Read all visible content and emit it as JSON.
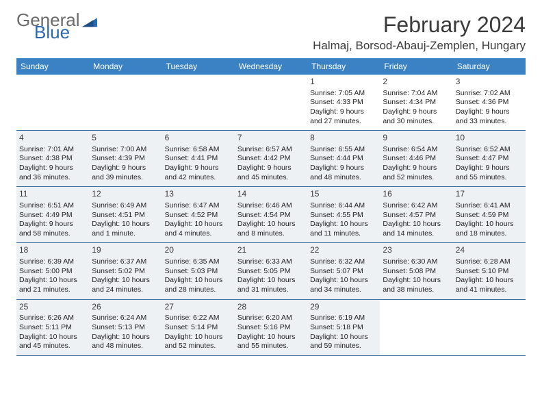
{
  "logo": {
    "line1": "General",
    "line2": "Blue"
  },
  "title": "February 2024",
  "location": "Halmaj, Borsod-Abauj-Zemplen, Hungary",
  "colors": {
    "header_bg": "#3b82c4",
    "header_text": "#ffffff",
    "shade_bg": "#eef1f4",
    "rule": "#3b6fa0",
    "title_text": "#3a3a3a",
    "logo_gray": "#6a6a6a",
    "logo_blue": "#2a68b0"
  },
  "days": [
    "Sunday",
    "Monday",
    "Tuesday",
    "Wednesday",
    "Thursday",
    "Friday",
    "Saturday"
  ],
  "weeks": [
    {
      "shade": false,
      "cells": [
        {
          "n": "",
          "lines": []
        },
        {
          "n": "",
          "lines": []
        },
        {
          "n": "",
          "lines": []
        },
        {
          "n": "",
          "lines": []
        },
        {
          "n": "1",
          "lines": [
            "Sunrise: 7:05 AM",
            "Sunset: 4:33 PM",
            "Daylight: 9 hours",
            "and 27 minutes."
          ]
        },
        {
          "n": "2",
          "lines": [
            "Sunrise: 7:04 AM",
            "Sunset: 4:34 PM",
            "Daylight: 9 hours",
            "and 30 minutes."
          ]
        },
        {
          "n": "3",
          "lines": [
            "Sunrise: 7:02 AM",
            "Sunset: 4:36 PM",
            "Daylight: 9 hours",
            "and 33 minutes."
          ]
        }
      ]
    },
    {
      "shade": true,
      "cells": [
        {
          "n": "4",
          "lines": [
            "Sunrise: 7:01 AM",
            "Sunset: 4:38 PM",
            "Daylight: 9 hours",
            "and 36 minutes."
          ]
        },
        {
          "n": "5",
          "lines": [
            "Sunrise: 7:00 AM",
            "Sunset: 4:39 PM",
            "Daylight: 9 hours",
            "and 39 minutes."
          ]
        },
        {
          "n": "6",
          "lines": [
            "Sunrise: 6:58 AM",
            "Sunset: 4:41 PM",
            "Daylight: 9 hours",
            "and 42 minutes."
          ]
        },
        {
          "n": "7",
          "lines": [
            "Sunrise: 6:57 AM",
            "Sunset: 4:42 PM",
            "Daylight: 9 hours",
            "and 45 minutes."
          ]
        },
        {
          "n": "8",
          "lines": [
            "Sunrise: 6:55 AM",
            "Sunset: 4:44 PM",
            "Daylight: 9 hours",
            "and 48 minutes."
          ]
        },
        {
          "n": "9",
          "lines": [
            "Sunrise: 6:54 AM",
            "Sunset: 4:46 PM",
            "Daylight: 9 hours",
            "and 52 minutes."
          ]
        },
        {
          "n": "10",
          "lines": [
            "Sunrise: 6:52 AM",
            "Sunset: 4:47 PM",
            "Daylight: 9 hours",
            "and 55 minutes."
          ]
        }
      ]
    },
    {
      "shade": true,
      "cells": [
        {
          "n": "11",
          "lines": [
            "Sunrise: 6:51 AM",
            "Sunset: 4:49 PM",
            "Daylight: 9 hours",
            "and 58 minutes."
          ]
        },
        {
          "n": "12",
          "lines": [
            "Sunrise: 6:49 AM",
            "Sunset: 4:51 PM",
            "Daylight: 10 hours",
            "and 1 minute."
          ]
        },
        {
          "n": "13",
          "lines": [
            "Sunrise: 6:47 AM",
            "Sunset: 4:52 PM",
            "Daylight: 10 hours",
            "and 4 minutes."
          ]
        },
        {
          "n": "14",
          "lines": [
            "Sunrise: 6:46 AM",
            "Sunset: 4:54 PM",
            "Daylight: 10 hours",
            "and 8 minutes."
          ]
        },
        {
          "n": "15",
          "lines": [
            "Sunrise: 6:44 AM",
            "Sunset: 4:55 PM",
            "Daylight: 10 hours",
            "and 11 minutes."
          ]
        },
        {
          "n": "16",
          "lines": [
            "Sunrise: 6:42 AM",
            "Sunset: 4:57 PM",
            "Daylight: 10 hours",
            "and 14 minutes."
          ]
        },
        {
          "n": "17",
          "lines": [
            "Sunrise: 6:41 AM",
            "Sunset: 4:59 PM",
            "Daylight: 10 hours",
            "and 18 minutes."
          ]
        }
      ]
    },
    {
      "shade": true,
      "cells": [
        {
          "n": "18",
          "lines": [
            "Sunrise: 6:39 AM",
            "Sunset: 5:00 PM",
            "Daylight: 10 hours",
            "and 21 minutes."
          ]
        },
        {
          "n": "19",
          "lines": [
            "Sunrise: 6:37 AM",
            "Sunset: 5:02 PM",
            "Daylight: 10 hours",
            "and 24 minutes."
          ]
        },
        {
          "n": "20",
          "lines": [
            "Sunrise: 6:35 AM",
            "Sunset: 5:03 PM",
            "Daylight: 10 hours",
            "and 28 minutes."
          ]
        },
        {
          "n": "21",
          "lines": [
            "Sunrise: 6:33 AM",
            "Sunset: 5:05 PM",
            "Daylight: 10 hours",
            "and 31 minutes."
          ]
        },
        {
          "n": "22",
          "lines": [
            "Sunrise: 6:32 AM",
            "Sunset: 5:07 PM",
            "Daylight: 10 hours",
            "and 34 minutes."
          ]
        },
        {
          "n": "23",
          "lines": [
            "Sunrise: 6:30 AM",
            "Sunset: 5:08 PM",
            "Daylight: 10 hours",
            "and 38 minutes."
          ]
        },
        {
          "n": "24",
          "lines": [
            "Sunrise: 6:28 AM",
            "Sunset: 5:10 PM",
            "Daylight: 10 hours",
            "and 41 minutes."
          ]
        }
      ]
    },
    {
      "shade": true,
      "cells": [
        {
          "n": "25",
          "lines": [
            "Sunrise: 6:26 AM",
            "Sunset: 5:11 PM",
            "Daylight: 10 hours",
            "and 45 minutes."
          ]
        },
        {
          "n": "26",
          "lines": [
            "Sunrise: 6:24 AM",
            "Sunset: 5:13 PM",
            "Daylight: 10 hours",
            "and 48 minutes."
          ]
        },
        {
          "n": "27",
          "lines": [
            "Sunrise: 6:22 AM",
            "Sunset: 5:14 PM",
            "Daylight: 10 hours",
            "and 52 minutes."
          ]
        },
        {
          "n": "28",
          "lines": [
            "Sunrise: 6:20 AM",
            "Sunset: 5:16 PM",
            "Daylight: 10 hours",
            "and 55 minutes."
          ]
        },
        {
          "n": "29",
          "lines": [
            "Sunrise: 6:19 AM",
            "Sunset: 5:18 PM",
            "Daylight: 10 hours",
            "and 59 minutes."
          ]
        },
        {
          "n": "",
          "lines": []
        },
        {
          "n": "",
          "lines": []
        }
      ]
    }
  ]
}
